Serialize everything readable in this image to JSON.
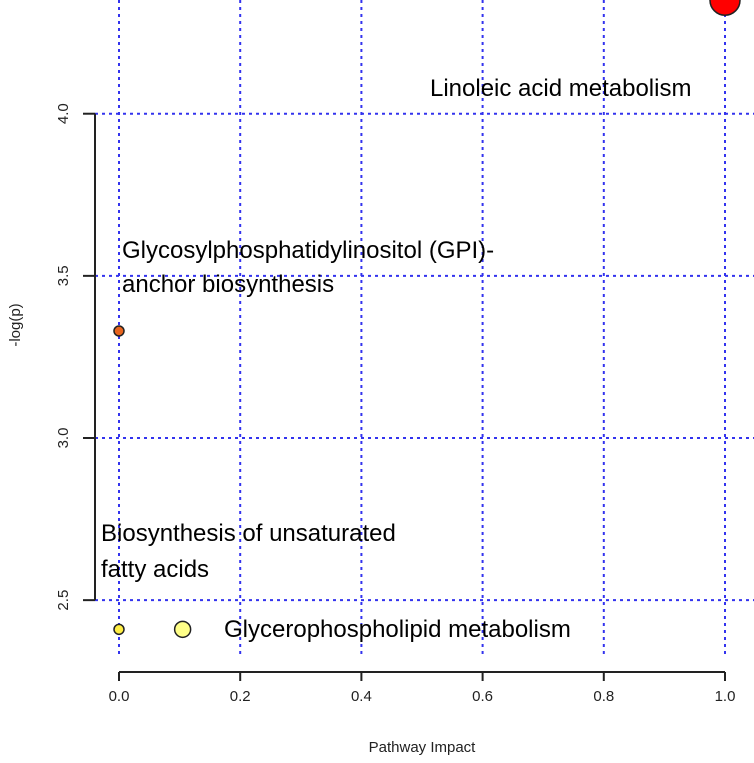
{
  "chart_data": {
    "type": "scatter",
    "title": "",
    "xlabel": "Pathway Impact",
    "ylabel": "-log(p)",
    "xlim": [
      0.0,
      1.0
    ],
    "ylim": [
      2.3,
      4.4
    ],
    "xticks": [
      "0.0",
      "0.2",
      "0.4",
      "0.6",
      "0.8",
      "1.0"
    ],
    "xtick_values": [
      0.0,
      0.2,
      0.4,
      0.6,
      0.8,
      1.0
    ],
    "yticks": [
      "2.5",
      "3.0",
      "3.5",
      "4.0"
    ],
    "ytick_values": [
      2.5,
      3.0,
      3.5,
      4.0
    ],
    "grid": true,
    "grid_color": "#3333ee",
    "points": [
      {
        "x": 1.0,
        "y": 4.35,
        "color": "#ff0000",
        "size": "large",
        "label_lines": [
          "Linoleic acid metabolism"
        ]
      },
      {
        "x": 0.0,
        "y": 3.33,
        "color": "#e8641e",
        "size": "small",
        "label_lines": [
          "Glycosylphosphatidylinositol (GPI)-",
          "anchor biosynthesis"
        ]
      },
      {
        "x": 0.0,
        "y": 2.41,
        "color": "#ffee44",
        "size": "small",
        "label_lines": [
          "Biosynthesis of unsaturated",
          "fatty acids"
        ]
      },
      {
        "x": 0.105,
        "y": 2.41,
        "color": "#ffff88",
        "size": "medium",
        "label_lines": [
          "Glycerophospholipid metabolism"
        ]
      }
    ]
  }
}
